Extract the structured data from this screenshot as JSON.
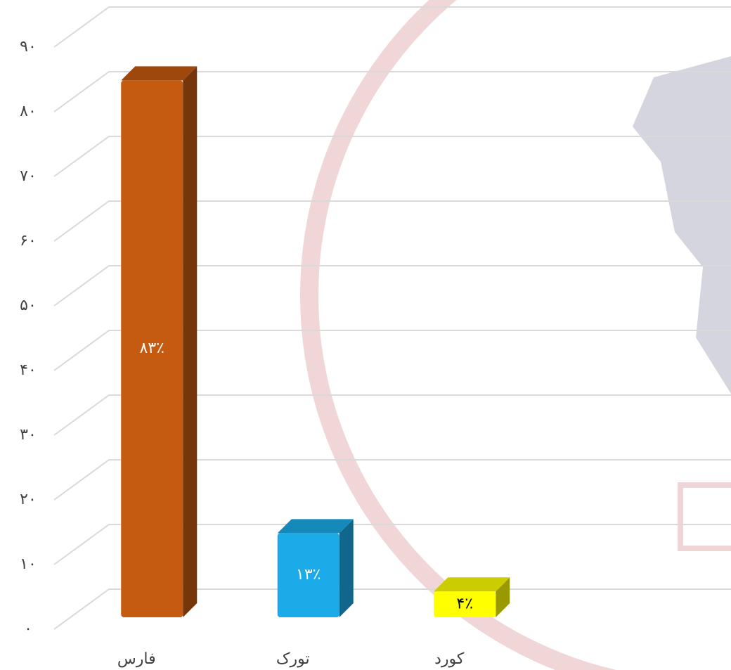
{
  "chart_data": {
    "type": "bar3d",
    "categories": [
      "فارس",
      "تورک",
      "کورد"
    ],
    "values": [
      83,
      13,
      4
    ],
    "value_labels": [
      "۸۳٪",
      "۱۳٪",
      "۴٪"
    ],
    "colors": [
      "#c55a11",
      "#1aabe8",
      "#ffff00"
    ],
    "ylim": [
      0,
      90
    ],
    "yticks": [
      {
        "value": 0,
        "label": "۰"
      },
      {
        "value": 10,
        "label": "۱۰"
      },
      {
        "value": 20,
        "label": "۲۰"
      },
      {
        "value": 30,
        "label": "۳۰"
      },
      {
        "value": 40,
        "label": "۴۰"
      },
      {
        "value": 50,
        "label": "۵۰"
      },
      {
        "value": 60,
        "label": "۶۰"
      },
      {
        "value": 70,
        "label": "۷۰"
      },
      {
        "value": 80,
        "label": "۸۰"
      },
      {
        "value": 90,
        "label": "۹۰"
      }
    ],
    "grid": true
  }
}
